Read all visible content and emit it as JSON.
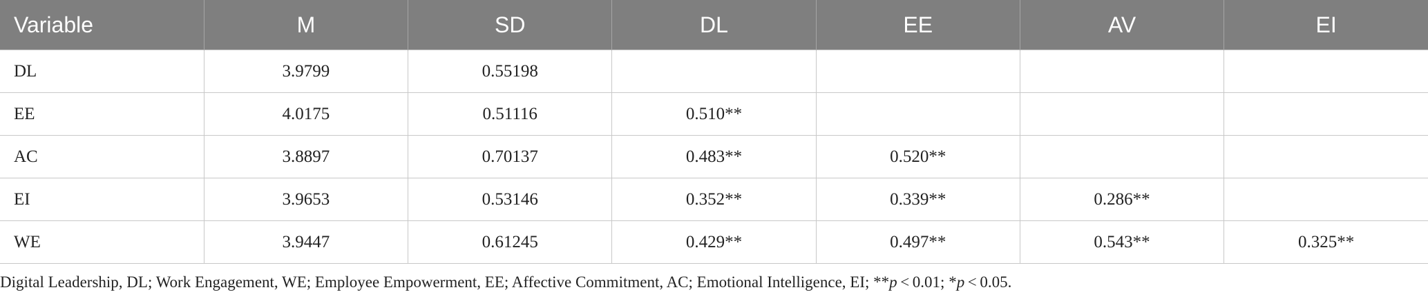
{
  "table": {
    "header": [
      "Variable",
      "M",
      "SD",
      "DL",
      "EE",
      "AV",
      "EI"
    ],
    "rows": [
      [
        "DL",
        "3.9799",
        "0.55198",
        null,
        null,
        null,
        null
      ],
      [
        "EE",
        "4.0175",
        "0.51116",
        "0.510**",
        null,
        null,
        null
      ],
      [
        "AC",
        "3.8897",
        "0.70137",
        "0.483**",
        "0.520**",
        null,
        null
      ],
      [
        "EI",
        "3.9653",
        "0.53146",
        "0.352**",
        "0.339**",
        "0.286**",
        null
      ],
      [
        "WE",
        "3.9447",
        "0.61245",
        "0.429**",
        "0.497**",
        "0.543**",
        "0.325**"
      ]
    ]
  },
  "footnote": [
    "Digital Leadership, DL; Work Engagement, WE; Employee Empowerment, EE; Affective Commitment, AC; Emotional Intelligence, EI; **",
    "p",
    " < 0.01; *",
    "p",
    " < 0.05."
  ]
}
